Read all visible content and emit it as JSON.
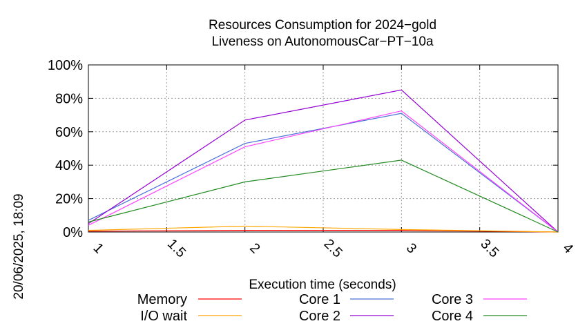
{
  "chart_data": {
    "type": "line",
    "title": "Resources Consumption for 2024−gold",
    "subtitle": "Liveness on AutonomousCar−PT−10a",
    "xlabel": "Execution time (seconds)",
    "ylabel": "",
    "side_label": "20/06/2025, 18:09",
    "xlim": [
      1,
      4
    ],
    "ylim": [
      0,
      100
    ],
    "x_ticks": [
      {
        "value": 1,
        "label": "1"
      },
      {
        "value": 1.5,
        "label": "1.5"
      },
      {
        "value": 2,
        "label": "2"
      },
      {
        "value": 2.5,
        "label": "2.5"
      },
      {
        "value": 3,
        "label": "3"
      },
      {
        "value": 3.5,
        "label": "3.5"
      },
      {
        "value": 4,
        "label": "4"
      }
    ],
    "y_ticks": [
      {
        "value": 0,
        "label": "0%"
      },
      {
        "value": 20,
        "label": "20%"
      },
      {
        "value": 40,
        "label": "40%"
      },
      {
        "value": 60,
        "label": "60%"
      },
      {
        "value": 80,
        "label": "80%"
      },
      {
        "value": 100,
        "label": "100%"
      }
    ],
    "grid": true,
    "legend_position": "bottom",
    "series": [
      {
        "name": "Memory",
        "color": "#ff0000",
        "points": [
          [
            1,
            0.5
          ],
          [
            2,
            1
          ],
          [
            3,
            1
          ],
          [
            4,
            0
          ]
        ]
      },
      {
        "name": "I/O wait",
        "color": "#ffa500",
        "points": [
          [
            1,
            1
          ],
          [
            2,
            3.5
          ],
          [
            3,
            1.5
          ],
          [
            4,
            0
          ]
        ]
      },
      {
        "name": "Core 1",
        "color": "#4a6fd8",
        "points": [
          [
            1,
            7
          ],
          [
            2,
            53
          ],
          [
            3,
            71
          ],
          [
            4,
            0
          ]
        ]
      },
      {
        "name": "Core 2",
        "color": "#9400d3",
        "points": [
          [
            1,
            5
          ],
          [
            2,
            67
          ],
          [
            3,
            85
          ],
          [
            4,
            0
          ]
        ]
      },
      {
        "name": "Core 3",
        "color": "#ff40ff",
        "points": [
          [
            1,
            4
          ],
          [
            2,
            51
          ],
          [
            3,
            72.5
          ],
          [
            4,
            0
          ]
        ]
      },
      {
        "name": "Core 4",
        "color": "#228b22",
        "points": [
          [
            1,
            6
          ],
          [
            2,
            30
          ],
          [
            3,
            43
          ],
          [
            4,
            0
          ]
        ]
      }
    ]
  }
}
